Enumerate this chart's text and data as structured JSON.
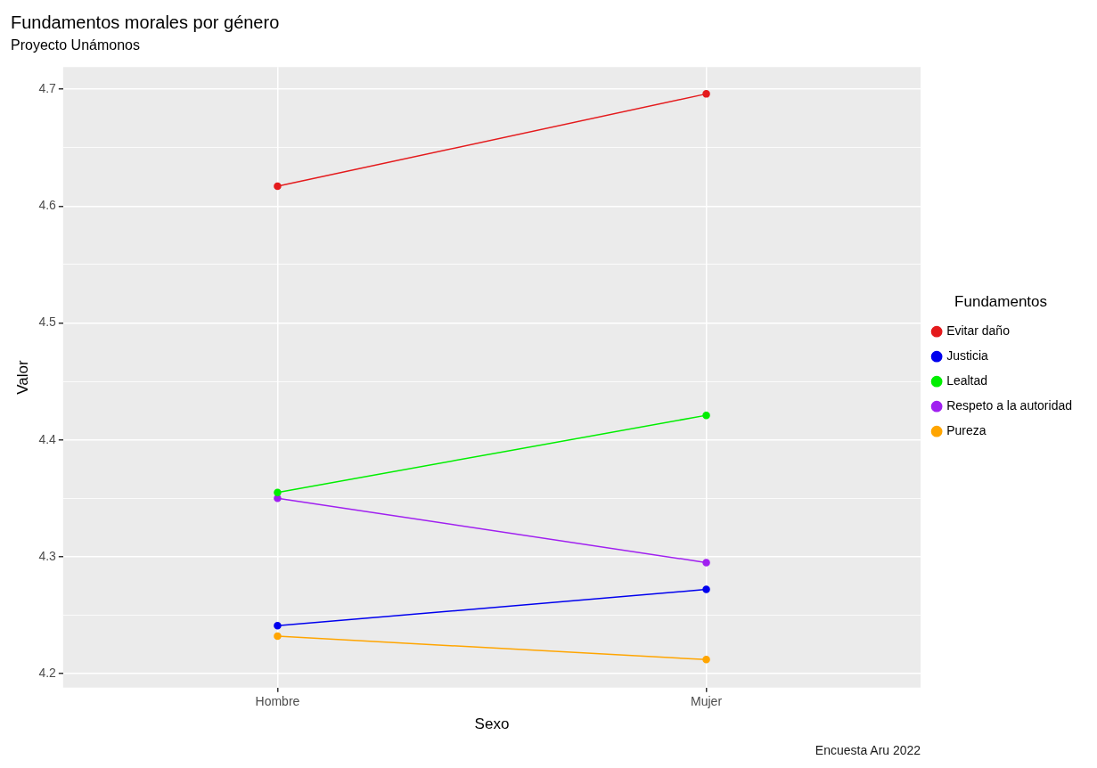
{
  "chart_data": {
    "type": "line",
    "title": "Fundamentos morales por género",
    "subtitle": "Proyecto Unámonos",
    "xlabel": "Sexo",
    "ylabel": "Valor",
    "legend_title": "Fundamentos",
    "annotations": [
      "Encuesta Aru 2022"
    ],
    "categories": [
      "Hombre",
      "Mujer"
    ],
    "series": [
      {
        "name": "Evitar daño",
        "color": "#e41a1c",
        "values": [
          4.617,
          4.696
        ]
      },
      {
        "name": "Justicia",
        "color": "#0000ee",
        "values": [
          4.241,
          4.272
        ]
      },
      {
        "name": "Lealtad",
        "color": "#00ee00",
        "values": [
          4.355,
          4.421
        ]
      },
      {
        "name": "Respeto a la autoridad",
        "color": "#a020f0",
        "values": [
          4.35,
          4.295
        ]
      },
      {
        "name": "Pureza",
        "color": "#ffa500",
        "values": [
          4.232,
          4.212
        ]
      }
    ],
    "ylim": [
      4.188,
      4.719
    ],
    "yticks": [
      4.2,
      {
        "value": 4.25,
        "label": null
      },
      4.3,
      {
        "value": 4.35,
        "label": null
      },
      4.4,
      {
        "value": 4.45,
        "label": null
      },
      4.5,
      {
        "value": 4.55,
        "label": null
      },
      4.6,
      {
        "value": 4.65,
        "label": null
      },
      4.7
    ],
    "grid": true,
    "legend": "right",
    "marker": "circle",
    "line_style": "solid"
  }
}
